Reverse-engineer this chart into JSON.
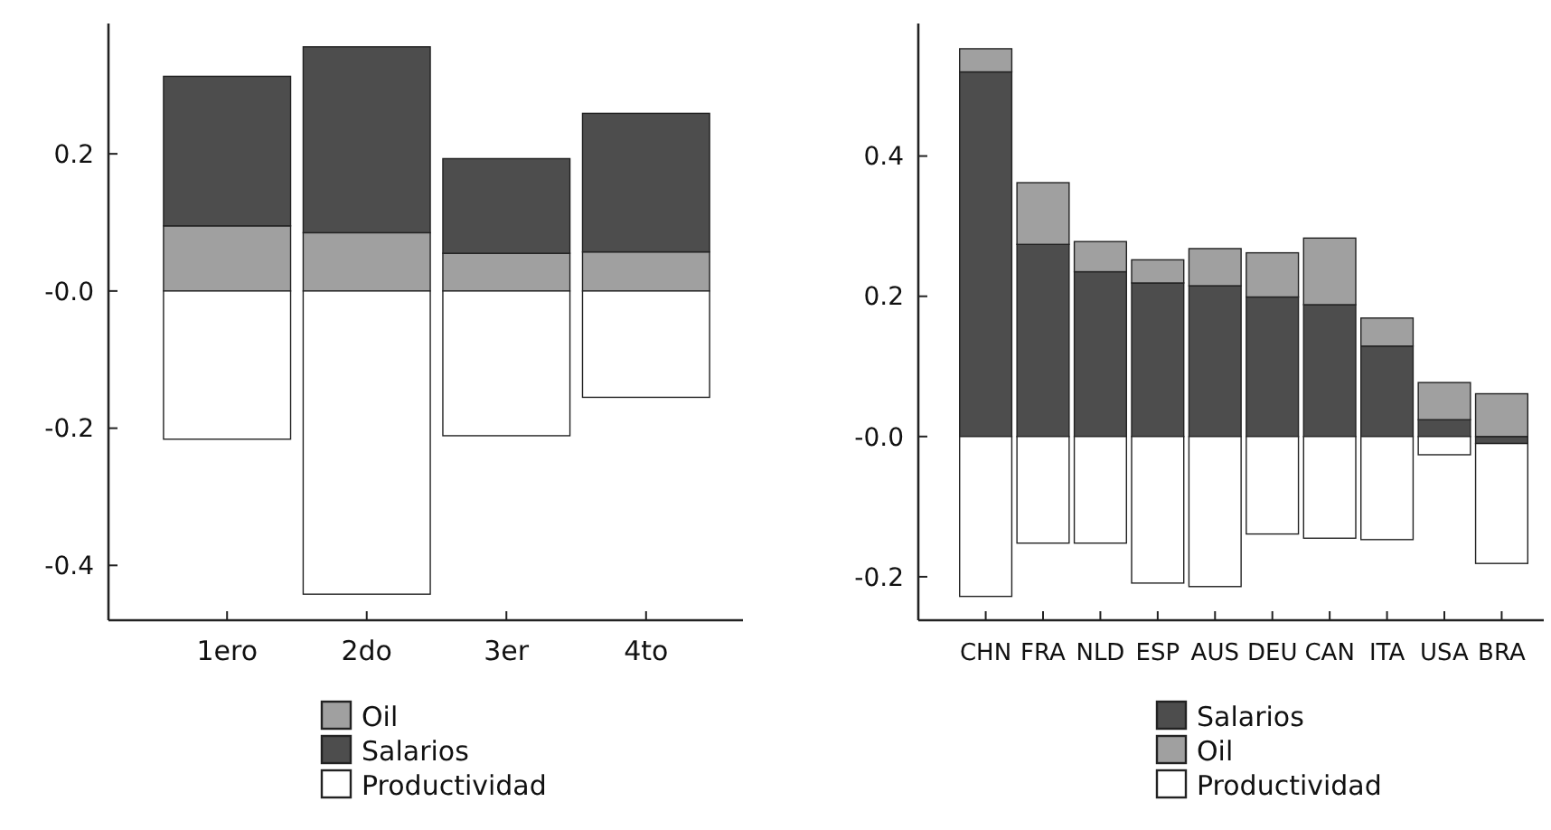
{
  "chart_data": [
    {
      "type": "bar",
      "stacked": true,
      "legend": "bottom",
      "categories": [
        "1ero",
        "2do",
        "3er",
        "4to"
      ],
      "series": [
        {
          "name": "Oil",
          "color": "#a0a0a0",
          "values": [
            0.095,
            0.085,
            0.055,
            0.057
          ]
        },
        {
          "name": "Salarios",
          "color": "#4d4d4d",
          "values": [
            0.218,
            0.271,
            0.138,
            0.202
          ]
        },
        {
          "name": "Productividad",
          "color": "#ffffff",
          "values": [
            -0.216,
            -0.442,
            -0.211,
            -0.155
          ]
        }
      ],
      "ylim": [
        -0.48,
        0.39
      ],
      "yticks": [
        -0.4,
        -0.2,
        {
          "value": 0,
          "label": "-0.0"
        },
        0.2
      ]
    },
    {
      "type": "bar",
      "stacked": true,
      "legend": "bottom",
      "categories": [
        "CHN",
        "FRA",
        "NLD",
        "ESP",
        "AUS",
        "DEU",
        "CAN",
        "ITA",
        "USA",
        "BRA"
      ],
      "series": [
        {
          "name": "Salarios",
          "color": "#4d4d4d",
          "values": [
            0.52,
            0.274,
            0.235,
            0.219,
            0.215,
            0.199,
            0.188,
            0.129,
            0.024,
            -0.01
          ]
        },
        {
          "name": "Oil",
          "color": "#a0a0a0",
          "values": [
            0.033,
            0.088,
            0.043,
            0.033,
            0.053,
            0.063,
            0.095,
            0.04,
            0.053,
            0.061
          ]
        },
        {
          "name": "Productividad",
          "color": "#ffffff",
          "values": [
            -0.228,
            -0.152,
            -0.152,
            -0.209,
            -0.214,
            -0.139,
            -0.145,
            -0.147,
            -0.026,
            -0.171
          ]
        }
      ],
      "ylim": [
        -0.262,
        0.589
      ],
      "yticks": [
        -0.2,
        {
          "value": 0,
          "label": "-0.0"
        },
        0.2,
        0.4
      ]
    }
  ]
}
